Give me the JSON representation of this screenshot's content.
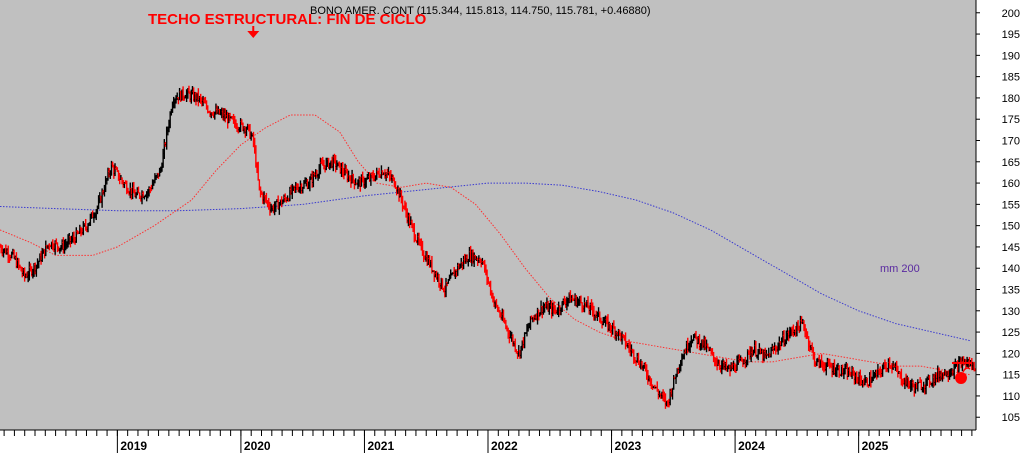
{
  "chart_data": {
    "type": "line",
    "header": "BONO AMER. CONT (115.344, 115.813, 114.750, 115.781, +0.46880)",
    "annotation": "TECHO ESTRUCTURAL: FIN DE CICLO",
    "annotation_x": 2020.1,
    "annotation_y": 192,
    "ma_label": "mm 200",
    "ylim": [
      102,
      203
    ],
    "xlim": [
      2018.05,
      2025.95
    ],
    "y_ticks": [
      105,
      110,
      115,
      120,
      125,
      130,
      135,
      140,
      145,
      150,
      155,
      160,
      165,
      170,
      175,
      180,
      185,
      190,
      195,
      200
    ],
    "x_labels": [
      {
        "label": "2019",
        "x": 2019.0
      },
      {
        "label": "2020",
        "x": 2020.0
      },
      {
        "label": "2021",
        "x": 2021.0
      },
      {
        "label": "2022",
        "x": 2022.0
      },
      {
        "label": "2023",
        "x": 2023.0
      },
      {
        "label": "2024",
        "x": 2024.0
      },
      {
        "label": "2025",
        "x": 2025.0
      }
    ],
    "grid": false,
    "colors": {
      "background": "#c0c0c0",
      "price_up": "#000000",
      "price_down": "#ff0000",
      "ma_fast": "#ff3030",
      "ma_slow": "#3a3ad0",
      "annotation": "#ff0000"
    },
    "series": [
      {
        "kind": "price",
        "x": [
          2018.05,
          2018.15,
          2018.25,
          2018.35,
          2018.45,
          2018.55,
          2018.65,
          2018.75,
          2018.85,
          2018.95,
          2019.05,
          2019.15,
          2019.25,
          2019.35,
          2019.45,
          2019.55,
          2019.65,
          2019.75,
          2019.85,
          2019.95,
          2020.05,
          2020.1,
          2020.15,
          2020.25,
          2020.35,
          2020.45,
          2020.55,
          2020.65,
          2020.75,
          2020.85,
          2020.95,
          2021.05,
          2021.15,
          2021.25,
          2021.35,
          2021.45,
          2021.55,
          2021.65,
          2021.75,
          2021.85,
          2021.95,
          2022.05,
          2022.15,
          2022.25,
          2022.35,
          2022.45,
          2022.55,
          2022.65,
          2022.75,
          2022.85,
          2022.95,
          2023.05,
          2023.15,
          2023.25,
          2023.35,
          2023.45,
          2023.55,
          2023.65,
          2023.75,
          2023.85,
          2023.95,
          2024.05,
          2024.15,
          2024.25,
          2024.35,
          2024.45,
          2024.55,
          2024.65,
          2024.75,
          2024.85,
          2024.95,
          2025.05,
          2025.15,
          2025.25,
          2025.35,
          2025.45,
          2025.55,
          2025.65,
          2025.75,
          2025.85,
          2025.95
        ],
        "y": [
          145,
          143,
          138,
          141,
          146,
          145,
          147,
          150,
          155,
          164,
          160,
          157,
          158,
          163,
          180,
          181,
          180,
          177,
          176,
          174,
          173,
          170,
          158,
          154,
          156,
          159,
          160,
          164,
          165,
          162,
          160,
          161,
          163,
          160,
          152,
          145,
          140,
          135,
          140,
          143,
          142,
          132,
          126,
          120,
          128,
          131,
          130,
          133,
          132,
          130,
          127,
          125,
          121,
          117,
          112,
          108,
          118,
          124,
          122,
          118,
          116,
          118,
          121,
          119,
          122,
          125,
          127,
          118,
          117,
          116,
          115,
          113,
          115,
          118,
          114,
          112,
          113,
          115,
          116,
          118,
          117
        ]
      },
      {
        "kind": "ma_fast",
        "x": [
          2018.05,
          2018.3,
          2018.5,
          2018.8,
          2019.0,
          2019.3,
          2019.6,
          2019.8,
          2020.0,
          2020.2,
          2020.4,
          2020.6,
          2020.8,
          2020.95,
          2021.1,
          2021.3,
          2021.5,
          2021.7,
          2021.9,
          2022.1,
          2022.3,
          2022.5,
          2022.7,
          2022.9,
          2023.1,
          2023.3,
          2023.5,
          2023.7,
          2023.9,
          2024.1,
          2024.3,
          2024.5,
          2024.7,
          2024.9,
          2025.1,
          2025.3,
          2025.5,
          2025.7,
          2025.9
        ],
        "y": [
          149,
          146,
          143,
          143,
          145,
          150,
          156,
          163,
          169,
          173,
          176,
          176,
          172,
          165,
          160,
          159,
          160,
          159,
          155,
          148,
          140,
          133,
          128,
          125,
          123,
          122,
          121,
          120,
          119,
          118,
          118,
          119,
          120,
          119,
          118,
          117,
          117,
          116,
          115
        ]
      },
      {
        "kind": "ma_slow",
        "x": [
          2018.05,
          2018.5,
          2019.0,
          2019.5,
          2020.0,
          2020.5,
          2021.0,
          2021.5,
          2022.0,
          2022.3,
          2022.6,
          2022.9,
          2023.2,
          2023.5,
          2023.8,
          2024.1,
          2024.4,
          2024.7,
          2025.0,
          2025.3,
          2025.6,
          2025.9
        ],
        "y": [
          154.5,
          154,
          153.5,
          153.5,
          154,
          155,
          157,
          158.5,
          160,
          160,
          159.5,
          158,
          156,
          153,
          149,
          144,
          139,
          134,
          130,
          127,
          125,
          123
        ]
      }
    ]
  }
}
